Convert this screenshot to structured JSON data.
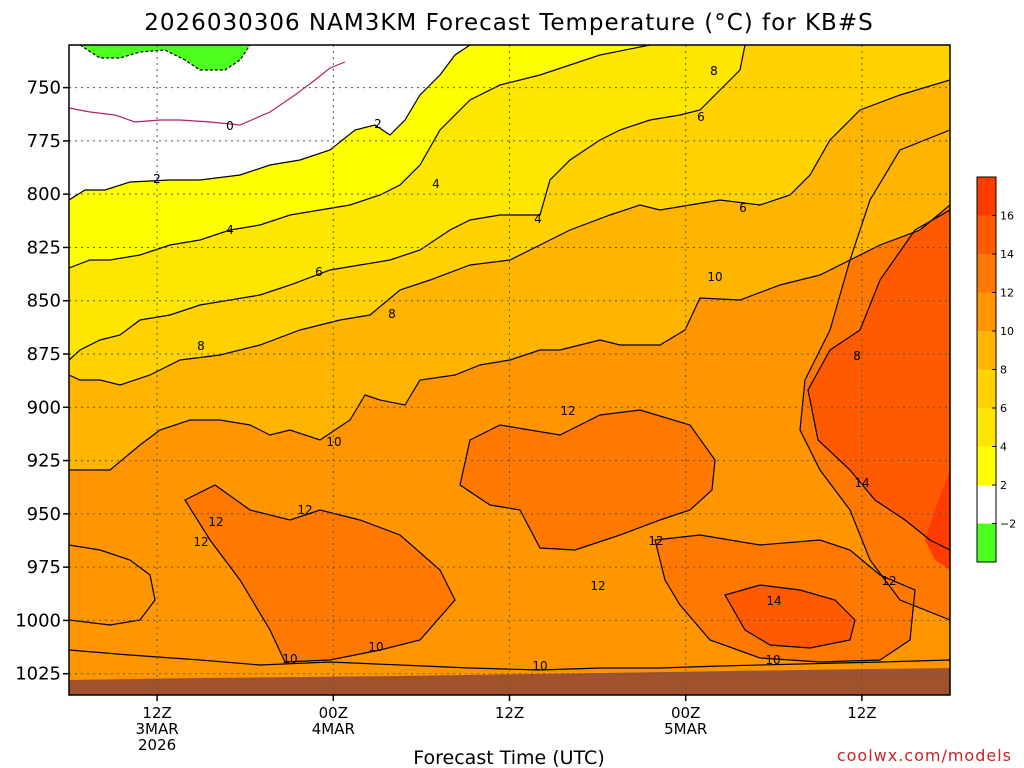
{
  "chart_data": {
    "type": "heatmap",
    "title": "2026030306 NAM3KM Forecast Temperature (°C) for KB#S",
    "xlabel": "Forecast Time (UTC)",
    "ylabel": "",
    "y_axis": {
      "ticks": [
        750,
        775,
        800,
        825,
        850,
        875,
        900,
        925,
        950,
        975,
        1000,
        1025
      ],
      "inverted": true,
      "range": [
        730,
        1035
      ]
    },
    "x_axis": {
      "ticks": [
        {
          "hour": 6,
          "lines": [
            "12Z",
            "3MAR",
            "2026"
          ]
        },
        {
          "hour": 18,
          "lines": [
            "00Z",
            "4MAR"
          ]
        },
        {
          "hour": 30,
          "lines": [
            "12Z"
          ]
        },
        {
          "hour": 42,
          "lines": [
            "00Z",
            "5MAR"
          ]
        },
        {
          "hour": 54,
          "lines": [
            "12Z"
          ]
        }
      ],
      "range": [
        0,
        60
      ]
    },
    "grid": true,
    "colorbar": {
      "labels": [
        "16",
        "14",
        "12",
        "10",
        "8",
        "6",
        "4",
        "2",
        "−2"
      ],
      "levels": [
        -4,
        -2,
        2,
        4,
        6,
        8,
        10,
        12,
        14,
        16,
        18
      ],
      "colors": [
        "#4cff1e",
        "#ffffff",
        "#ffff00",
        "#ffe600",
        "#ffd200",
        "#ffb400",
        "#ff9600",
        "#ff7800",
        "#ff5a00",
        "#ff3c00"
      ]
    },
    "contour_labels": [
      "0",
      "2",
      "2",
      "4",
      "4",
      "4",
      "6",
      "6",
      "6",
      "8",
      "8",
      "8",
      "8",
      "10",
      "10",
      "10",
      "10",
      "10",
      "10",
      "12",
      "12",
      "12",
      "12",
      "12",
      "12",
      "12",
      "14",
      "14"
    ],
    "ground_color": "#a0522d"
  },
  "credit": "coolwx.com/models"
}
